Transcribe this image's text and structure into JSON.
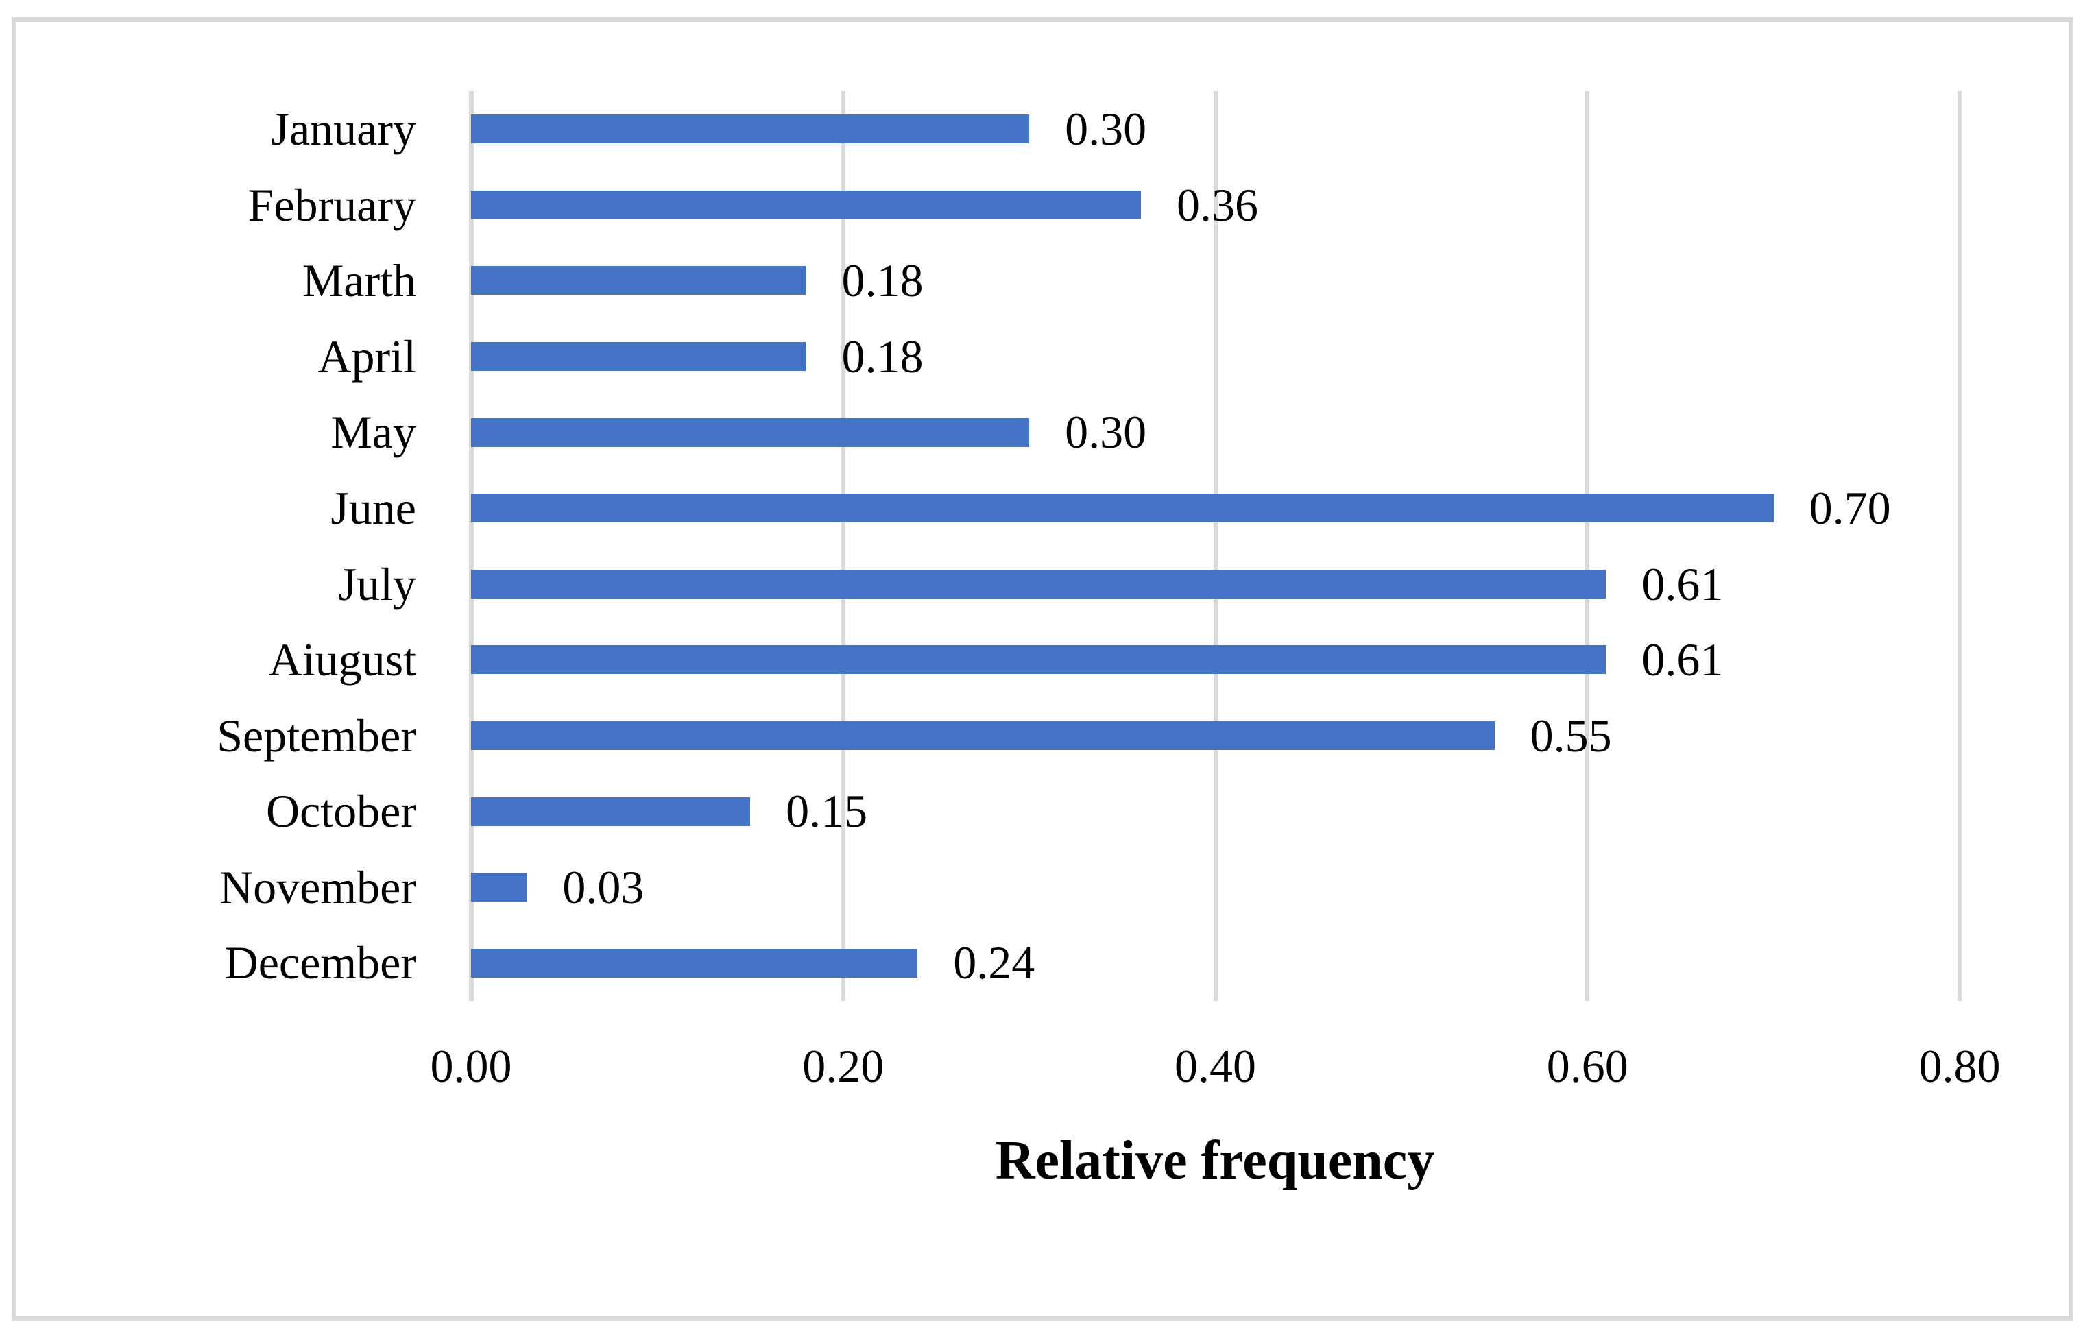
{
  "chart_data": {
    "type": "bar",
    "orientation": "horizontal",
    "title": "",
    "xlabel": "Relative frequency",
    "ylabel": "",
    "categories": [
      "January",
      "February",
      "Marth",
      "April",
      "May",
      "June",
      "July",
      "Aiugust",
      "September",
      "October",
      "November",
      "December"
    ],
    "values": [
      0.3,
      0.36,
      0.18,
      0.18,
      0.3,
      0.7,
      0.61,
      0.61,
      0.55,
      0.15,
      0.03,
      0.24
    ],
    "data_labels": [
      "0.30",
      "0.36",
      "0.18",
      "0.18",
      "0.30",
      "0.70",
      "0.61",
      "0.61",
      "0.55",
      "0.15",
      "0.03",
      "0.24"
    ],
    "xlim": [
      0.0,
      0.8
    ],
    "x_ticks": [
      0.0,
      0.2,
      0.4,
      0.6,
      0.8
    ],
    "x_tick_labels": [
      "0.00",
      "0.20",
      "0.40",
      "0.60",
      "0.80"
    ],
    "grid": "vertical-major",
    "legend": "none",
    "colors": {
      "bar": "#4472C4",
      "gridline": "#D9D9D9",
      "axis_line": "#D9D9D9",
      "frame_border": "#D9D9D9",
      "text": "#000000",
      "background": "#FFFFFF"
    }
  }
}
